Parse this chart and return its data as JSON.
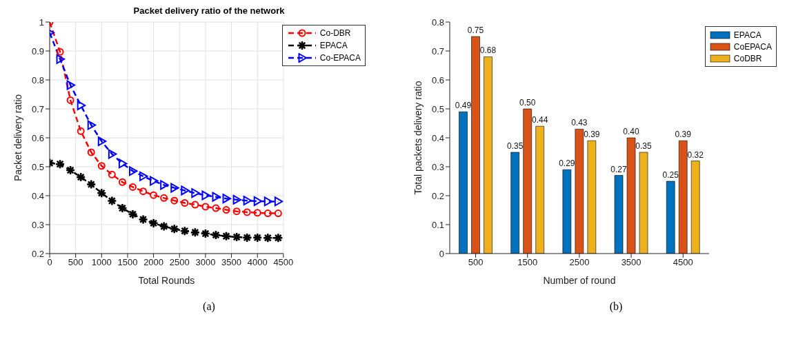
{
  "chart_data": [
    {
      "type": "line",
      "title": "Packet delivery ratio of the network",
      "xlabel": "Total Rounds",
      "ylabel": "Packet delivery ratio",
      "annotations": [
        "(a)"
      ],
      "x": [
        0,
        200,
        400,
        600,
        800,
        1000,
        1200,
        1400,
        1600,
        1800,
        2000,
        2200,
        2400,
        2600,
        2800,
        3000,
        3200,
        3400,
        3600,
        3800,
        4000,
        4200,
        4400
      ],
      "series": [
        {
          "name": "Co-DBR",
          "color": "#ff0000",
          "marker": "circle",
          "values": [
            1.0,
            0.897,
            0.73,
            0.623,
            0.55,
            0.503,
            0.473,
            0.447,
            0.43,
            0.415,
            0.402,
            0.392,
            0.383,
            0.375,
            0.369,
            0.362,
            0.357,
            0.351,
            0.346,
            0.343,
            0.341,
            0.339,
            0.339
          ]
        },
        {
          "name": "EPACA",
          "color": "#000000",
          "marker": "cross",
          "values": [
            0.513,
            0.509,
            0.488,
            0.464,
            0.439,
            0.409,
            0.382,
            0.357,
            0.336,
            0.318,
            0.305,
            0.294,
            0.285,
            0.278,
            0.273,
            0.269,
            0.264,
            0.26,
            0.257,
            0.255,
            0.255,
            0.254,
            0.254
          ]
        },
        {
          "name": "Co-EPACA",
          "color": "#0000ff",
          "marker": "triangle",
          "values": [
            0.963,
            0.872,
            0.782,
            0.712,
            0.644,
            0.588,
            0.544,
            0.511,
            0.485,
            0.467,
            0.451,
            0.437,
            0.427,
            0.418,
            0.409,
            0.401,
            0.396,
            0.39,
            0.386,
            0.383,
            0.381,
            0.38,
            0.38
          ]
        }
      ],
      "xlim": [
        0,
        4500
      ],
      "xticks": [
        0,
        500,
        1000,
        1500,
        2000,
        2500,
        3000,
        3500,
        4000,
        4500
      ],
      "ylim": [
        0.2,
        1
      ],
      "yticks": [
        0.2,
        0.3,
        0.4,
        0.5,
        0.6,
        0.7,
        0.8,
        0.9,
        1
      ],
      "grid": true,
      "legend": "top right",
      "line_style": "dashed"
    },
    {
      "type": "bar",
      "xlabel": "Number of round",
      "ylabel": "Total packets delivery ratio",
      "annotations": [
        "(b)"
      ],
      "categories": [
        "500",
        "1500",
        "2500",
        "3500",
        "4500"
      ],
      "series": [
        {
          "name": "EPACA",
          "color": "#0072bd",
          "values": [
            0.49,
            0.35,
            0.29,
            0.27,
            0.25
          ],
          "value_labels": [
            "0.49",
            "0.35",
            "0.29",
            "0.27",
            "0.25"
          ]
        },
        {
          "name": "CoEPACA",
          "color": "#d95319",
          "values": [
            0.75,
            0.5,
            0.43,
            0.4,
            0.39
          ],
          "value_labels": [
            "0.75",
            "0.50",
            "0.43",
            "0.40",
            "0.39"
          ]
        },
        {
          "name": "CoDBR",
          "color": "#edb120",
          "values": [
            0.68,
            0.44,
            0.39,
            0.35,
            0.32
          ],
          "value_labels": [
            "0.68",
            "0.44",
            "0.39",
            "0.35",
            "0.32"
          ]
        }
      ],
      "ylim": [
        0,
        0.8
      ],
      "yticks": [
        0,
        0.1,
        0.2,
        0.3,
        0.4,
        0.5,
        0.6,
        0.7,
        0.8
      ],
      "grid": false,
      "legend": "top right"
    }
  ]
}
